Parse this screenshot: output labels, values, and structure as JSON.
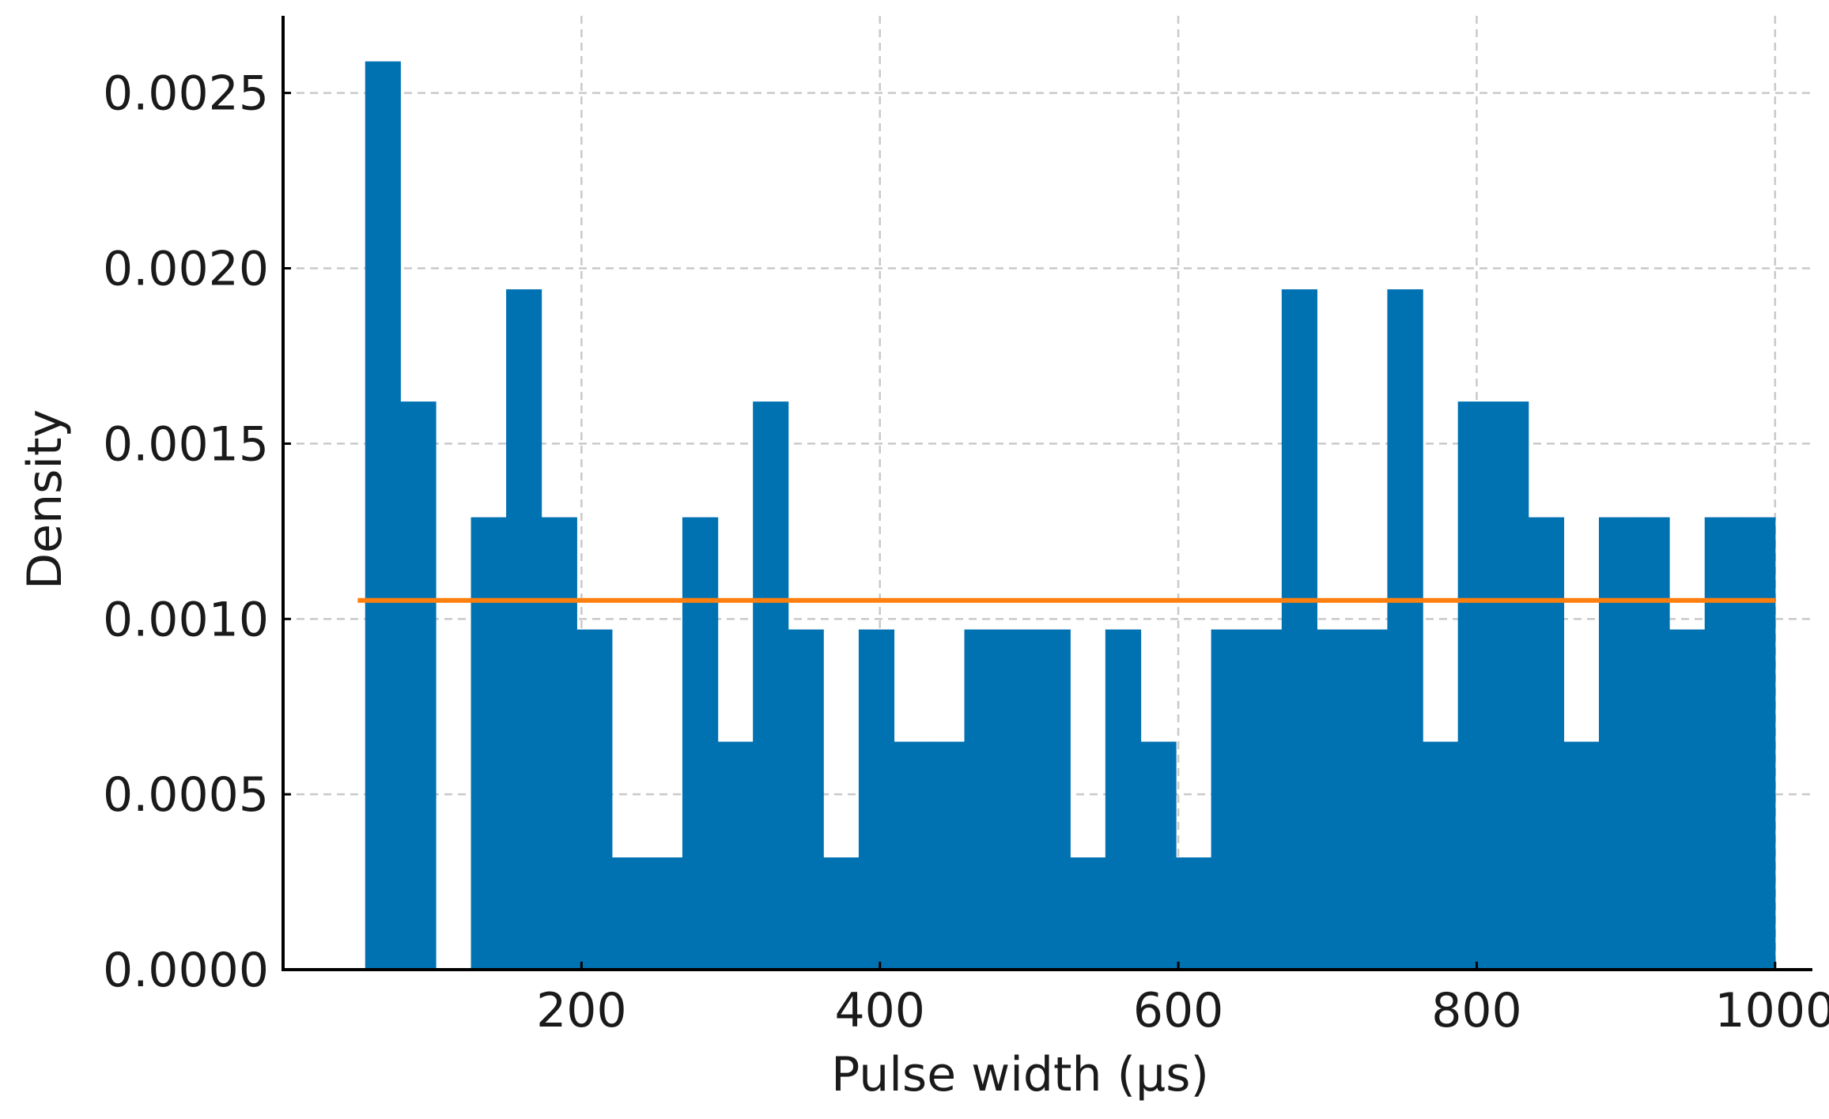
{
  "chart_data": {
    "type": "bar",
    "subtype": "histogram",
    "xlabel": "Pulse width (μs)",
    "ylabel": "Density",
    "xlim": [
      0,
      1025
    ],
    "ylim": [
      0,
      0.00272
    ],
    "xticks": [
      200,
      400,
      600,
      800,
      1000
    ],
    "xtick_labels": [
      "200",
      "400",
      "600",
      "800",
      "1000"
    ],
    "yticks": [
      0,
      0.0005,
      0.001,
      0.0015,
      0.002,
      0.0025
    ],
    "ytick_labels": [
      "0.0000",
      "0.0005",
      "0.0010",
      "0.0015",
      "0.0020",
      "0.0025"
    ],
    "grid": true,
    "bar_color": "#0072B2",
    "bin_edges": [
      55,
      78.6,
      102.3,
      125.9,
      149.5,
      173.1,
      196.8,
      220.4,
      244,
      267.6,
      291.3,
      314.9,
      338.5,
      362.1,
      385.8,
      409.4,
      433,
      456.6,
      480.3,
      503.9,
      527.5,
      551.1,
      574.8,
      598.4,
      622,
      645.6,
      669.3,
      692.9,
      716.5,
      740.1,
      763.8,
      787.4,
      811,
      834.6,
      858.3,
      881.9,
      905.5,
      929.1,
      952.8,
      976.4,
      1000
    ],
    "values": [
      0.00259,
      0.00162,
      0,
      0.00129,
      0.00194,
      0.00129,
      0.00097,
      0.00032,
      0.00032,
      0.00129,
      0.00065,
      0.00162,
      0.00097,
      0.00032,
      0.00097,
      0.00065,
      0.00065,
      0.00097,
      0.00097,
      0.00097,
      0.00032,
      0.00097,
      0.00065,
      0.00032,
      0.00097,
      0.00097,
      0.00194,
      0.00097,
      0.00097,
      0.00194,
      0.00065,
      0.00162,
      0.00162,
      0.00129,
      0.00065,
      0.00129,
      0.00129,
      0.00097,
      0.00129,
      0.00129
    ],
    "reference_line": {
      "type": "hline",
      "y": 0.001053,
      "x_range": [
        50,
        1000
      ],
      "color": "#FF7F0E"
    }
  }
}
